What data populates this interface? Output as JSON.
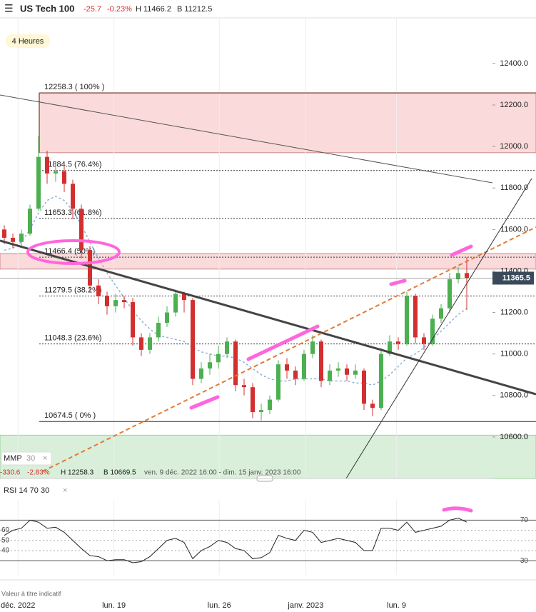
{
  "header": {
    "menu": "☰",
    "symbol": "US Tech 100",
    "change": "-25.7",
    "change_pct": "-0.23%",
    "high": "H 11466.2",
    "low": "B 11212.5"
  },
  "timeframe": "4 Heures",
  "chart_data": {
    "type": "candlestick",
    "ylim": [
      10400,
      12620
    ],
    "yticks": [
      {
        "value": 10600,
        "label": "10600.0"
      },
      {
        "value": 10800,
        "label": "10800.0"
      },
      {
        "value": 11000,
        "label": "11000.0"
      },
      {
        "value": 11200,
        "label": "11200.0"
      },
      {
        "value": 11400,
        "label": "11400.0"
      },
      {
        "value": 11600,
        "label": "11600.0"
      },
      {
        "value": 11800,
        "label": "11800.0"
      },
      {
        "value": 12000,
        "label": "12000.0"
      },
      {
        "value": 12200,
        "label": "12200.0"
      },
      {
        "value": 12400,
        "label": "12400.0"
      }
    ],
    "xlim": [
      -0.5,
      57
    ],
    "xticks": [
      {
        "value": 1.6,
        "label": "déc. 2022"
      },
      {
        "value": 12.8,
        "label": "lun. 19"
      },
      {
        "value": 25.1,
        "label": "lun. 26"
      },
      {
        "value": 35.2,
        "label": "janv. 2023"
      },
      {
        "value": 45.8,
        "label": "lun. 9"
      }
    ],
    "up_color": "#4caf50",
    "down_color": "#d32f2f",
    "open": [
      11600,
      11560,
      11540,
      11580,
      11700,
      11950,
      11870,
      11880,
      11820,
      11700,
      11500,
      11330,
      11280,
      11230,
      11260,
      11250,
      11080,
      11020,
      11080,
      11150,
      11200,
      11290,
      11260,
      10880,
      10930,
      10960,
      11000,
      11060,
      10850,
      10840,
      10720,
      10730,
      10780,
      10950,
      10920,
      10880,
      11000,
      11060,
      10870,
      10920,
      10930,
      10900,
      10920,
      10760,
      10740,
      11000,
      11060,
      11050,
      11280,
      11080,
      11050,
      11170,
      11220,
      11360,
      11390
    ],
    "close": [
      11560,
      11540,
      11580,
      11700,
      11950,
      11870,
      11880,
      11820,
      11700,
      11500,
      11330,
      11280,
      11230,
      11260,
      11250,
      11080,
      11020,
      11080,
      11150,
      11200,
      11290,
      11260,
      10880,
      10930,
      10960,
      11000,
      11060,
      10850,
      10840,
      10720,
      10730,
      10780,
      10950,
      10920,
      10880,
      11000,
      11060,
      10870,
      10920,
      10930,
      10900,
      10920,
      10760,
      10740,
      11000,
      11060,
      11050,
      11280,
      11080,
      11050,
      11170,
      11220,
      11360,
      11390,
      11365.5
    ],
    "high": [
      11620,
      11580,
      11600,
      11720,
      12050,
      11980,
      11920,
      11910,
      11840,
      11720,
      11520,
      11360,
      11300,
      11290,
      11280,
      11270,
      11100,
      11100,
      11180,
      11230,
      11310,
      11300,
      11270,
      10960,
      11000,
      11040,
      11080,
      11070,
      10880,
      10860,
      10760,
      10800,
      10970,
      10980,
      10940,
      11020,
      11090,
      11070,
      10950,
      10960,
      10950,
      10950,
      10930,
      10780,
      11030,
      11090,
      11080,
      11300,
      11290,
      11100,
      11190,
      11240,
      11390,
      11420,
      11466.2
    ],
    "low": [
      11530,
      11510,
      11520,
      11570,
      11690,
      11820,
      11830,
      11780,
      11650,
      11460,
      11300,
      11240,
      11190,
      11200,
      11220,
      11040,
      10990,
      11000,
      11060,
      11130,
      11180,
      11200,
      10850,
      10860,
      10900,
      10930,
      10980,
      10820,
      10800,
      10690,
      10680,
      10710,
      10770,
      10880,
      10850,
      10870,
      10980,
      10840,
      10850,
      10890,
      10870,
      10880,
      10730,
      10700,
      10730,
      10990,
      11020,
      11040,
      11050,
      11020,
      11040,
      11150,
      11200,
      11340,
      11212.5
    ],
    "ma": {
      "name": "MMP",
      "period": "30",
      "color": "#8fb3d9",
      "values": [
        11500,
        11510,
        11540,
        11600,
        11680,
        11740,
        11760,
        11740,
        11690,
        11620,
        11540,
        11460,
        11390,
        11330,
        11270,
        11210,
        11160,
        11120,
        11090,
        11080,
        11070,
        11060,
        11030,
        11010,
        11000,
        10990,
        10990,
        10980,
        10960,
        10930,
        10900,
        10880,
        10870,
        10870,
        10880,
        10880,
        10880,
        10880,
        10870,
        10870,
        10870,
        10860,
        10860,
        10850,
        10870,
        10900,
        10940,
        10980,
        11000,
        11030,
        11070,
        11110,
        11150,
        11190,
        11220
      ]
    },
    "last_price": 11365.5,
    "levels": [
      {
        "value": 12258.3,
        "label": "12258.3 ( 100% )"
      },
      {
        "value": 11884.5,
        "label": "11884.5 (76.4%)"
      },
      {
        "value": 11653.3,
        "label": "11653.3 (61.8%)"
      },
      {
        "value": 11466.4,
        "label": "11466.4 (50%)"
      },
      {
        "value": 11279.5,
        "label": "11279.5 (38.2%)"
      },
      {
        "value": 11048.3,
        "label": "11048.3 (23.6%)"
      },
      {
        "value": 10674.5,
        "label": "10674.5 ( 0% )"
      }
    ],
    "zones": [
      {
        "from": 12258.3,
        "to": 11970,
        "color": "rgba(240,150,150,0.35)"
      },
      {
        "from": 11484,
        "to": 11409,
        "color": "rgba(240,150,150,0.35)"
      },
      {
        "from": 10609,
        "to": 10400,
        "color": "rgba(150,210,150,0.35)"
      }
    ],
    "info": {
      "ma_label": "MMP",
      "ma_value": "30",
      "change": "-330.6",
      "change_pct": "-2.83%",
      "high": "H 12258.3",
      "low": "B 10669.5",
      "range": "ven. 9 déc. 2022 16:00 - dim. 15 janv. 2023 16:00"
    },
    "rsi": {
      "label": "RSI 14 70 30",
      "ylim": [
        16,
        90
      ],
      "yticks": [
        30,
        40,
        50,
        60,
        70
      ],
      "color": "#222",
      "values": [
        55,
        60,
        62,
        70,
        68,
        62,
        63,
        58,
        50,
        42,
        35,
        34,
        30,
        31,
        31,
        28,
        29,
        34,
        42,
        50,
        52,
        48,
        32,
        40,
        44,
        50,
        48,
        42,
        40,
        32,
        33,
        38,
        55,
        52,
        50,
        60,
        58,
        48,
        50,
        52,
        50,
        48,
        40,
        40,
        62,
        62,
        60,
        68,
        58,
        60,
        62,
        64,
        70,
        72,
        68
      ]
    },
    "footnote": "Valeur à titre indicatif"
  }
}
